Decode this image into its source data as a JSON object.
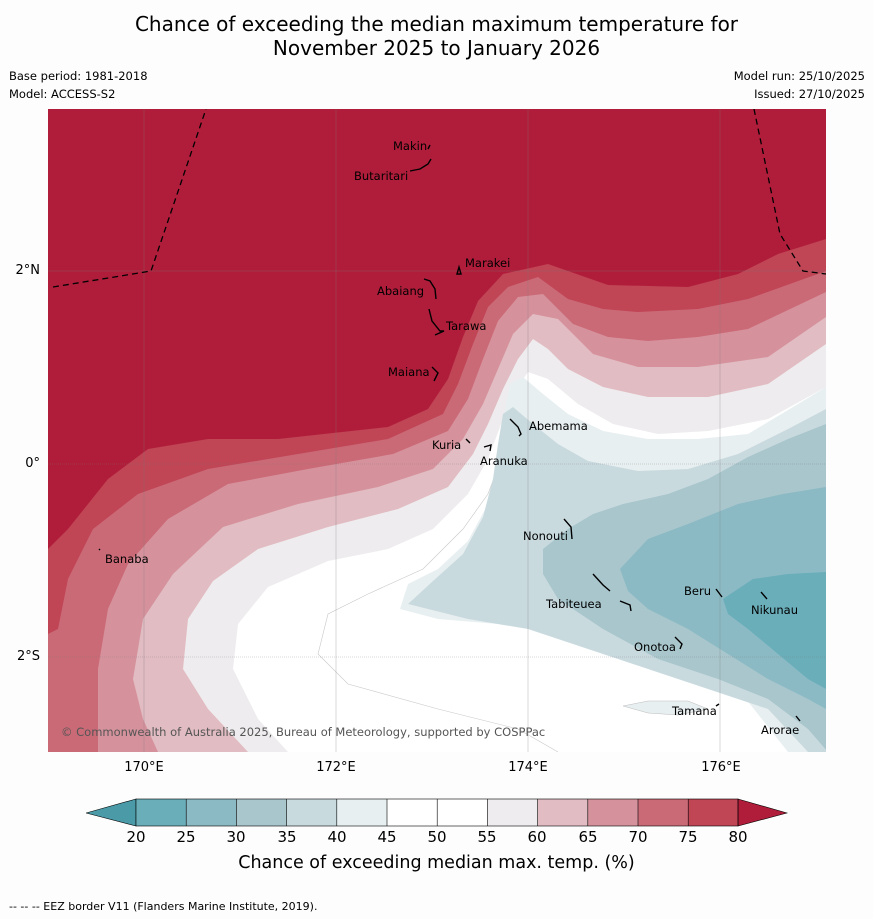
{
  "title": {
    "line1": "Chance of exceeding the median maximum temperature for",
    "line2": "November 2025 to January 2026"
  },
  "meta": {
    "base_period": "Base period: 1981-2018",
    "model": "Model: ACCESS-S2",
    "model_run": "Model run: 25/10/2025",
    "issued": "Issued: 27/10/2025"
  },
  "map": {
    "lat_labels": [
      "2°N",
      "0°",
      "2°S"
    ],
    "lon_labels": [
      "170°E",
      "172°E",
      "174°E",
      "176°E"
    ],
    "places": {
      "makin": "Makin",
      "butaritari": "Butaritari",
      "marakei": "Marakei",
      "abaiang": "Abaiang",
      "tarawa": "Tarawa",
      "maiana": "Maiana",
      "abemama": "Abemama",
      "kuria": "Kuria",
      "aranuka": "Aranuka",
      "banaba": "Banaba",
      "nonouti": "Nonouti",
      "tabiteuea": "Tabiteuea",
      "beru": "Beru",
      "nikunau": "Nikunau",
      "onotoa": "Onotoa",
      "tamana": "Tamana",
      "arorae": "Arorae"
    },
    "copyright": "© Commonwealth of Australia 2025, Bureau of Meteorology, supported by COSPPac"
  },
  "colorbar": {
    "ticks": [
      "20",
      "25",
      "30",
      "35",
      "40",
      "45",
      "50",
      "55",
      "60",
      "65",
      "70",
      "75",
      "80"
    ],
    "colors": {
      "below20": "#4a9aa8",
      "c20_25": "#6aaeba",
      "c25_30": "#8bbac4",
      "c30_35": "#a8c6cc",
      "c35_40": "#c9dadf",
      "c40_45": "#e8eff1",
      "c45_50": "#ffffff",
      "c50_55": "#ffffff",
      "c55_60": "#eeecee",
      "c60_65": "#e1bcc2",
      "c65_70": "#d6929c",
      "c70_75": "#cb6a77",
      "c75_80": "#c04555",
      "above80": "#b01d3a"
    },
    "label": "Chance of exceeding median max. temp. (%)"
  },
  "footer": "--  --  -- EEZ border V11 (Flanders Marine Institute, 2019)."
}
